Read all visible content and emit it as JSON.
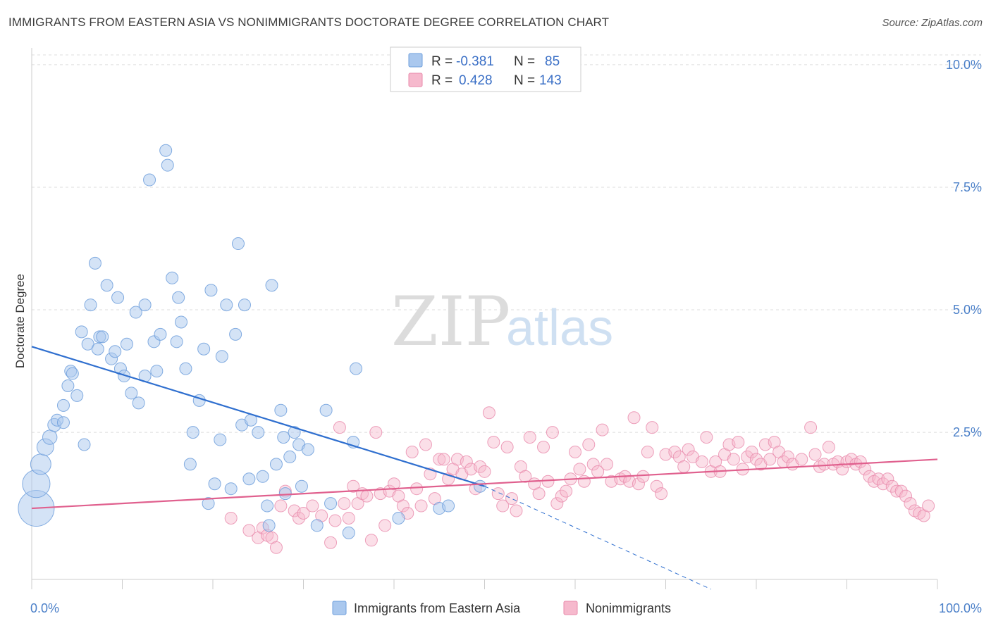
{
  "title": "IMMIGRANTS FROM EASTERN ASIA VS NONIMMIGRANTS DOCTORATE DEGREE CORRELATION CHART",
  "source": "Source: ZipAtlas.com",
  "watermark": {
    "zip": "ZIP",
    "atlas": "atlas"
  },
  "colors": {
    "blue_fill": "#aac8ee",
    "blue_stroke": "#6f9fdc",
    "blue_line": "#2f6fcf",
    "pink_fill": "#f6b9cd",
    "pink_stroke": "#e88aab",
    "pink_line": "#e0608e",
    "tick_text": "#4a7fc8",
    "grid": "#dddddd"
  },
  "legend": {
    "rows": [
      {
        "r_label": "R =",
        "r_value": "-0.381",
        "n_label": "N =",
        "n_value": "85"
      },
      {
        "r_label": "R =",
        "r_value": "0.428",
        "n_label": "N =",
        "n_value": "143"
      }
    ]
  },
  "bottom_legend": [
    "Immigrants from Eastern Asia",
    "Nonimmigrants"
  ],
  "chart_data": {
    "type": "scatter",
    "title": "IMMIGRANTS FROM EASTERN ASIA VS NONIMMIGRANTS DOCTORATE DEGREE CORRELATION CHART",
    "xlabel": "",
    "ylabel": "Doctorate Degree",
    "xlim": [
      0,
      100
    ],
    "ylim": [
      -0.5,
      10.2
    ],
    "x_tick_labels": [
      "0.0%",
      "100.0%"
    ],
    "y_ticks": [
      2.5,
      5.0,
      7.5,
      10.0
    ],
    "y_tick_labels": [
      "2.5%",
      "5.0%",
      "7.5%",
      "10.0%"
    ],
    "grid": true,
    "legend_position": "top-center",
    "series": [
      {
        "name": "Immigrants from Eastern Asia",
        "color": "#aac8ee",
        "trend": {
          "x": [
            0,
            50
          ],
          "y": [
            4.25,
            1.4
          ],
          "dashed_to": [
            75,
            -0.7
          ]
        },
        "points": [
          [
            0.5,
            0.95,
            3
          ],
          [
            0.5,
            1.45,
            2.3
          ],
          [
            1,
            1.85,
            1.7
          ],
          [
            1.5,
            2.2,
            1.4
          ],
          [
            2,
            2.4,
            1.2
          ],
          [
            2.5,
            2.65,
            1.1
          ],
          [
            2.8,
            2.75,
            1
          ],
          [
            3.5,
            3.05,
            1
          ],
          [
            3.5,
            2.7,
            1
          ],
          [
            4,
            3.45,
            1
          ],
          [
            4.3,
            3.75,
            1
          ],
          [
            4.5,
            3.7,
            1
          ],
          [
            5,
            3.25,
            1
          ],
          [
            5.5,
            4.55,
            1
          ],
          [
            5.8,
            2.25,
            1
          ],
          [
            6.2,
            4.3,
            1
          ],
          [
            6.5,
            5.1,
            1
          ],
          [
            7,
            5.95,
            1
          ],
          [
            7.3,
            4.2,
            1
          ],
          [
            7.5,
            4.45,
            1
          ],
          [
            7.8,
            4.45,
            1
          ],
          [
            8.3,
            5.5,
            1
          ],
          [
            8.8,
            4.0,
            1
          ],
          [
            9.2,
            4.15,
            1
          ],
          [
            9.5,
            5.25,
            1
          ],
          [
            9.8,
            3.8,
            1
          ],
          [
            10.2,
            3.65,
            1
          ],
          [
            10.5,
            4.3,
            1
          ],
          [
            11,
            3.3,
            1
          ],
          [
            11.5,
            4.95,
            1
          ],
          [
            11.8,
            3.1,
            1
          ],
          [
            12.5,
            5.1,
            1
          ],
          [
            12.5,
            3.65,
            1
          ],
          [
            13,
            7.65,
            1
          ],
          [
            13.5,
            4.35,
            1
          ],
          [
            13.8,
            3.75,
            1
          ],
          [
            14.2,
            4.5,
            1
          ],
          [
            14.8,
            8.25,
            1
          ],
          [
            15,
            7.95,
            1
          ],
          [
            15.5,
            5.65,
            1
          ],
          [
            16,
            4.35,
            1
          ],
          [
            16.2,
            5.25,
            1
          ],
          [
            16.5,
            4.75,
            1
          ],
          [
            17,
            3.8,
            1
          ],
          [
            17.5,
            1.85,
            1
          ],
          [
            17.8,
            2.5,
            1
          ],
          [
            18.5,
            3.15,
            1
          ],
          [
            19,
            4.2,
            1
          ],
          [
            19.5,
            1.05,
            1
          ],
          [
            19.8,
            5.4,
            1
          ],
          [
            20.2,
            1.45,
            1
          ],
          [
            20.8,
            2.35,
            1
          ],
          [
            21,
            4.05,
            1
          ],
          [
            21.5,
            5.1,
            1
          ],
          [
            22,
            1.35,
            1
          ],
          [
            22.5,
            4.5,
            1
          ],
          [
            22.8,
            6.35,
            1
          ],
          [
            23.2,
            2.65,
            1
          ],
          [
            23.5,
            5.1,
            1
          ],
          [
            24,
            1.55,
            1
          ],
          [
            24.2,
            2.75,
            1
          ],
          [
            25,
            2.5,
            1
          ],
          [
            25.5,
            1.6,
            1
          ],
          [
            26,
            1.0,
            1
          ],
          [
            26.2,
            0.6,
            1
          ],
          [
            26.5,
            5.5,
            1
          ],
          [
            27,
            1.85,
            1
          ],
          [
            27.5,
            2.95,
            1
          ],
          [
            27.8,
            2.4,
            1
          ],
          [
            28,
            1.25,
            1
          ],
          [
            28.5,
            2.0,
            1
          ],
          [
            29,
            2.5,
            1
          ],
          [
            29.5,
            2.25,
            1
          ],
          [
            29.8,
            1.4,
            1
          ],
          [
            30.5,
            2.15,
            1
          ],
          [
            31.5,
            0.6,
            1
          ],
          [
            32.5,
            2.95,
            1
          ],
          [
            33,
            1.05,
            1
          ],
          [
            35,
            0.45,
            1
          ],
          [
            35.5,
            2.3,
            1
          ],
          [
            35.8,
            3.8,
            1
          ],
          [
            40.5,
            0.75,
            1
          ],
          [
            45,
            0.95,
            1
          ],
          [
            46,
            1.0,
            1
          ],
          [
            49.5,
            1.4,
            1
          ]
        ]
      },
      {
        "name": "Nonimmigrants",
        "color": "#f6b9cd",
        "trend": {
          "x": [
            0,
            100
          ],
          "y": [
            0.95,
            1.95
          ]
        },
        "points": [
          [
            22,
            0.75
          ],
          [
            24,
            0.5
          ],
          [
            25,
            0.35
          ],
          [
            25.5,
            0.55
          ],
          [
            26,
            0.4
          ],
          [
            26.5,
            0.35
          ],
          [
            27,
            0.15
          ],
          [
            27.5,
            1.0
          ],
          [
            28,
            1.3
          ],
          [
            29,
            0.9
          ],
          [
            29.5,
            0.75
          ],
          [
            30,
            0.85
          ],
          [
            31,
            1.0
          ],
          [
            32,
            0.8
          ],
          [
            33,
            0.25
          ],
          [
            33.5,
            0.7
          ],
          [
            34,
            2.6
          ],
          [
            34.5,
            1.05
          ],
          [
            35,
            0.75
          ],
          [
            35.5,
            1.4
          ],
          [
            36,
            1.05
          ],
          [
            36.5,
            1.25
          ],
          [
            37,
            1.2
          ],
          [
            37.5,
            0.3
          ],
          [
            38,
            2.5
          ],
          [
            38.5,
            1.25
          ],
          [
            39,
            0.6
          ],
          [
            39.5,
            1.3
          ],
          [
            40,
            1.45
          ],
          [
            40.5,
            1.2
          ],
          [
            41,
            1.0
          ],
          [
            41.5,
            0.85
          ],
          [
            42,
            2.1
          ],
          [
            42.5,
            1.35
          ],
          [
            43,
            1.0
          ],
          [
            43.5,
            2.25
          ],
          [
            44,
            1.65
          ],
          [
            44.5,
            1.15
          ],
          [
            45,
            1.95
          ],
          [
            45.5,
            1.95
          ],
          [
            46,
            1.55
          ],
          [
            46.5,
            1.75
          ],
          [
            47,
            1.95
          ],
          [
            47.5,
            1.65
          ],
          [
            48,
            1.9
          ],
          [
            48.5,
            1.75
          ],
          [
            49,
            1.35
          ],
          [
            49.5,
            1.8
          ],
          [
            50,
            1.7
          ],
          [
            50.5,
            2.9
          ],
          [
            51,
            2.3
          ],
          [
            51.5,
            1.25
          ],
          [
            52,
            1.0
          ],
          [
            52.5,
            2.2
          ],
          [
            53,
            1.15
          ],
          [
            53.5,
            0.9
          ],
          [
            54,
            1.8
          ],
          [
            54.5,
            1.6
          ],
          [
            55,
            2.4
          ],
          [
            55.5,
            1.45
          ],
          [
            56,
            1.25
          ],
          [
            56.5,
            2.2
          ],
          [
            57,
            1.5
          ],
          [
            57.5,
            2.5
          ],
          [
            58,
            1.05
          ],
          [
            58.5,
            1.2
          ],
          [
            59,
            1.3
          ],
          [
            59.5,
            1.55
          ],
          [
            60,
            2.1
          ],
          [
            60.5,
            1.75
          ],
          [
            61,
            1.5
          ],
          [
            61.5,
            2.25
          ],
          [
            62,
            1.85
          ],
          [
            62.5,
            1.7
          ],
          [
            63,
            2.55
          ],
          [
            63.5,
            1.85
          ],
          [
            64,
            1.5
          ],
          [
            65,
            1.55
          ],
          [
            65.5,
            1.6
          ],
          [
            66,
            1.5
          ],
          [
            66.5,
            2.8
          ],
          [
            67,
            1.45
          ],
          [
            67.5,
            1.6
          ],
          [
            68,
            2.1
          ],
          [
            68.5,
            2.6
          ],
          [
            69,
            1.4
          ],
          [
            69.5,
            1.25
          ],
          [
            70,
            2.05
          ],
          [
            71,
            2.1
          ],
          [
            71.5,
            2.0
          ],
          [
            72,
            1.8
          ],
          [
            72.5,
            2.15
          ],
          [
            73,
            2.0
          ],
          [
            74,
            1.9
          ],
          [
            74.5,
            2.4
          ],
          [
            75,
            1.7
          ],
          [
            75.5,
            1.9
          ],
          [
            76,
            1.7
          ],
          [
            76.5,
            2.05
          ],
          [
            77,
            2.25
          ],
          [
            77.5,
            1.95
          ],
          [
            78,
            2.3
          ],
          [
            78.5,
            1.75
          ],
          [
            79,
            2.0
          ],
          [
            79.5,
            2.1
          ],
          [
            80,
            1.95
          ],
          [
            80.5,
            1.85
          ],
          [
            81,
            2.25
          ],
          [
            81.5,
            1.95
          ],
          [
            82,
            2.3
          ],
          [
            82.5,
            2.1
          ],
          [
            83,
            1.9
          ],
          [
            83.5,
            2.0
          ],
          [
            84,
            1.85
          ],
          [
            85,
            1.95
          ],
          [
            86,
            2.6
          ],
          [
            86.5,
            2.05
          ],
          [
            87,
            1.8
          ],
          [
            87.5,
            1.85
          ],
          [
            88,
            2.2
          ],
          [
            88.5,
            1.85
          ],
          [
            89,
            1.9
          ],
          [
            89.5,
            1.75
          ],
          [
            90,
            1.9
          ],
          [
            90.5,
            1.95
          ],
          [
            91,
            1.85
          ],
          [
            91.5,
            1.9
          ],
          [
            92,
            1.75
          ],
          [
            92.5,
            1.6
          ],
          [
            93,
            1.5
          ],
          [
            93.5,
            1.55
          ],
          [
            94,
            1.45
          ],
          [
            94.5,
            1.55
          ],
          [
            95,
            1.4
          ],
          [
            95.5,
            1.3
          ],
          [
            96,
            1.3
          ],
          [
            96.5,
            1.2
          ],
          [
            97,
            1.05
          ],
          [
            97.5,
            0.9
          ],
          [
            98,
            0.85
          ],
          [
            98.5,
            0.8
          ],
          [
            99,
            1.0
          ]
        ]
      }
    ]
  }
}
